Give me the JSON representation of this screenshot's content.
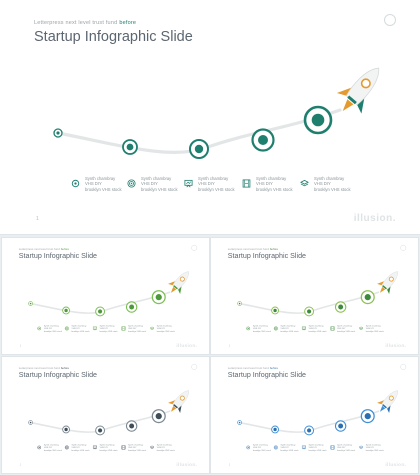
{
  "slide": {
    "kicker_text": "Letterpress next level trust fund",
    "kicker_accent": "before",
    "title": "Startup Infographic Slide",
    "page_number": "1",
    "brand": "illusion.",
    "features": [
      {
        "icon": "gear-globe-icon",
        "lines": [
          "Synth chambray",
          "VHS DIY",
          "brooklyn VHS stock"
        ]
      },
      {
        "icon": "target-icon",
        "lines": [
          "Synth chambray",
          "VHS DIY",
          "brooklyn VHS stock"
        ]
      },
      {
        "icon": "presentation-board-icon",
        "lines": [
          "Synth chambray",
          "VHS DIY",
          "brooklyn VHS stock"
        ]
      },
      {
        "icon": "film-strip-icon",
        "lines": [
          "Synth chambray",
          "VHS DIY",
          "brooklyn VHS stock"
        ]
      },
      {
        "icon": "layers-icon",
        "lines": [
          "Synth chambray",
          "VHS DIY",
          "brooklyn VHS stock"
        ]
      }
    ]
  },
  "variants": [
    {
      "name": "teal",
      "accent": "#1f7f6f",
      "accent_light": "#1f7f6f",
      "rocket_body": "#f2f3f3",
      "rocket_fin": "#e49a2e",
      "flame": "#e49a2e",
      "fin2": "#1f7f6f"
    },
    {
      "name": "green",
      "accent": "#4e9a3a",
      "accent_light": "#7bbf55",
      "rocket_body": "#f2f3f3",
      "rocket_fin": "#e49a2e",
      "flame": "#e49a2e",
      "fin2": "#4e9a3a"
    },
    {
      "name": "lime",
      "accent": "#3d8a3a",
      "accent_light": "#8cc152",
      "rocket_body": "#f2f3f3",
      "rocket_fin": "#e49a2e",
      "flame": "#e49a2e",
      "fin2": "#3d8a3a"
    },
    {
      "name": "gray",
      "accent": "#3e4f5a",
      "accent_light": "#7c8a93",
      "rocket_body": "#f2f3f3",
      "rocket_fin": "#e49a2e",
      "flame": "#e49a2e",
      "fin2": "#3e4f5a"
    },
    {
      "name": "blue",
      "accent": "#2a6fb0",
      "accent_light": "#3f8fd8",
      "rocket_body": "#f2f3f3",
      "rocket_fin": "#e49a2e",
      "flame": "#3f8fd8",
      "fin2": "#2a6fb0"
    }
  ]
}
